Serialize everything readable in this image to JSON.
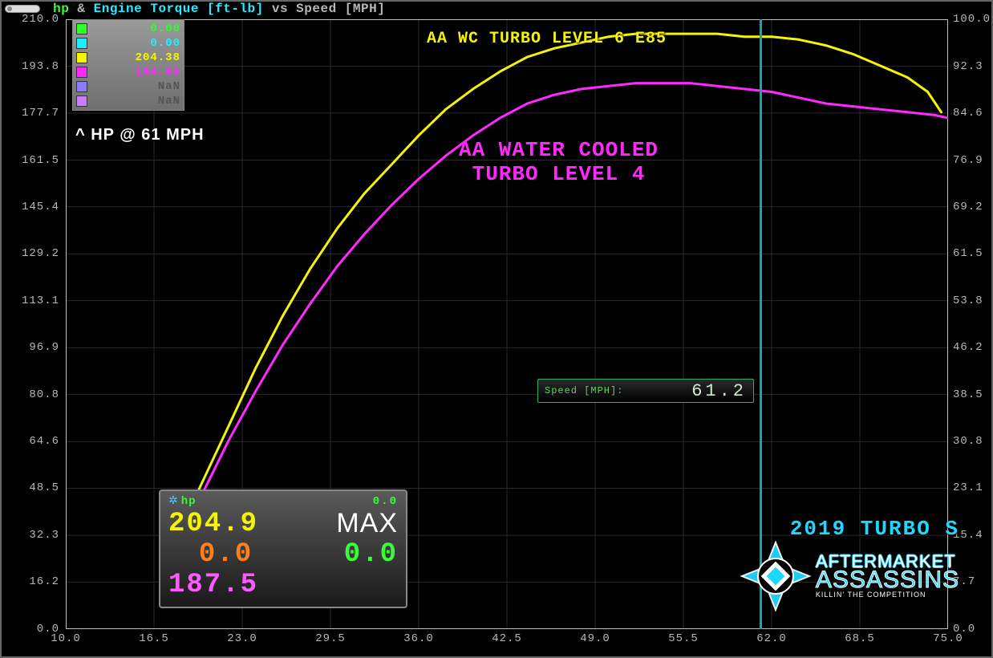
{
  "title": {
    "hp_label": "hp",
    "amp": " & ",
    "torque_label": "Engine Torque [ft-lb]",
    "vs": " vs ",
    "speed_label": "Speed [MPH]",
    "hp_color": "#37ff37",
    "torque_color": "#1eeeff",
    "other_color": "#b7b7b7"
  },
  "chart": {
    "type": "line",
    "background_color": "#000000",
    "grid_color": "#2a2a2a",
    "axis_color": "#bfbfbf",
    "tick_font_color": "#b7b7b7",
    "tick_fontsize": 14,
    "x": {
      "lim": [
        10.0,
        75.0
      ],
      "ticks": [
        10.0,
        16.5,
        23.0,
        29.5,
        36.0,
        42.5,
        49.0,
        55.5,
        62.0,
        68.5,
        75.0
      ]
    },
    "y_left": {
      "lim": [
        0.0,
        210.0
      ],
      "ticks": [
        0.0,
        16.2,
        32.3,
        48.5,
        64.6,
        80.8,
        96.9,
        113.1,
        129.2,
        145.4,
        161.5,
        177.7,
        193.8,
        210.0
      ]
    },
    "y_right": {
      "lim": [
        0.0,
        100.0
      ],
      "ticks": [
        0.0,
        7.7,
        15.4,
        23.1,
        30.8,
        38.5,
        46.2,
        53.8,
        61.5,
        69.2,
        76.9,
        84.6,
        92.3,
        100.0
      ]
    },
    "cursor_x": 61.2,
    "cursor_color": "#1aa3a8",
    "series": [
      {
        "name": "AA WC Turbo Level 6 E85",
        "color": "#f5f500",
        "line_width": 3,
        "points": [
          [
            17.0,
            20
          ],
          [
            18.0,
            30
          ],
          [
            20.0,
            50
          ],
          [
            22.0,
            70
          ],
          [
            24.0,
            90
          ],
          [
            26.0,
            108
          ],
          [
            28.0,
            124
          ],
          [
            30.0,
            138
          ],
          [
            32.0,
            150
          ],
          [
            34.0,
            160
          ],
          [
            36.0,
            170
          ],
          [
            38.0,
            179
          ],
          [
            40.0,
            186
          ],
          [
            42.0,
            192
          ],
          [
            44.0,
            197
          ],
          [
            46.0,
            200
          ],
          [
            48.0,
            202
          ],
          [
            50.0,
            204
          ],
          [
            52.0,
            205
          ],
          [
            54.0,
            205
          ],
          [
            56.0,
            205
          ],
          [
            58.0,
            205
          ],
          [
            60.0,
            204
          ],
          [
            62.0,
            204
          ],
          [
            64.0,
            203
          ],
          [
            66.0,
            201
          ],
          [
            68.0,
            198
          ],
          [
            70.0,
            194
          ],
          [
            72.0,
            190
          ],
          [
            73.5,
            185
          ],
          [
            74.5,
            178
          ]
        ]
      },
      {
        "name": "AA Water Cooled Turbo Level 4",
        "color": "#ff29ff",
        "line_width": 3,
        "points": [
          [
            17.0,
            20
          ],
          [
            18.0,
            28
          ],
          [
            20.0,
            46
          ],
          [
            22.0,
            65
          ],
          [
            24.0,
            82
          ],
          [
            26.0,
            98
          ],
          [
            28.0,
            112
          ],
          [
            30.0,
            125
          ],
          [
            32.0,
            136
          ],
          [
            34.0,
            146
          ],
          [
            36.0,
            155
          ],
          [
            38.0,
            163
          ],
          [
            40.0,
            170
          ],
          [
            42.0,
            176
          ],
          [
            44.0,
            181
          ],
          [
            46.0,
            184
          ],
          [
            48.0,
            186
          ],
          [
            50.0,
            187
          ],
          [
            52.0,
            188
          ],
          [
            54.0,
            188
          ],
          [
            56.0,
            188
          ],
          [
            58.0,
            187
          ],
          [
            60.0,
            186
          ],
          [
            62.0,
            185
          ],
          [
            64.0,
            183
          ],
          [
            66.0,
            181
          ],
          [
            68.0,
            180
          ],
          [
            70.0,
            179
          ],
          [
            72.0,
            178
          ],
          [
            74.0,
            177
          ],
          [
            75.0,
            176
          ]
        ]
      }
    ]
  },
  "legend": {
    "rows": [
      {
        "color": "#2cff2c",
        "value": "0.00",
        "text_color": "#2cff2c"
      },
      {
        "color": "#1eeeff",
        "value": "0.00",
        "text_color": "#1eeeff"
      },
      {
        "color": "#f5f500",
        "value": "204.38",
        "text_color": "#f5f500"
      },
      {
        "color": "#ff29ff",
        "value": "184.66",
        "text_color": "#ff29ff"
      },
      {
        "color": "#8a7cff",
        "value": "NaN",
        "text_color": "#555555"
      },
      {
        "color": "#c97cff",
        "value": "NaN",
        "text_color": "#555555"
      }
    ]
  },
  "hp_note": "^ HP @ 61 MPH",
  "annot_yellow": "AA WC TURBO LEVEL 6 E85",
  "annot_magenta_l1": "AA WATER COOLED",
  "annot_magenta_l2": "TURBO LEVEL 4",
  "speed_badge": {
    "label": "Speed [MPH]:",
    "value": "61.2"
  },
  "hp_panel": {
    "title": "hp",
    "top_right": "0.0",
    "yellow": "204.9",
    "orange": "0.0",
    "magenta": "187.5",
    "max_label": "MAX",
    "green_big": "0.0",
    "colors": {
      "yellow": "#f5f500",
      "orange": "#ff7f1a",
      "magenta": "#ff5aff",
      "green": "#37ff37"
    }
  },
  "branding": {
    "vehicle": "2019 TURBO S",
    "line1": "AFTERMARKET",
    "line2": "ASSASSINS",
    "tagline": "KILLIN' THE COMPETITION",
    "accent": "#1ed7ff"
  }
}
